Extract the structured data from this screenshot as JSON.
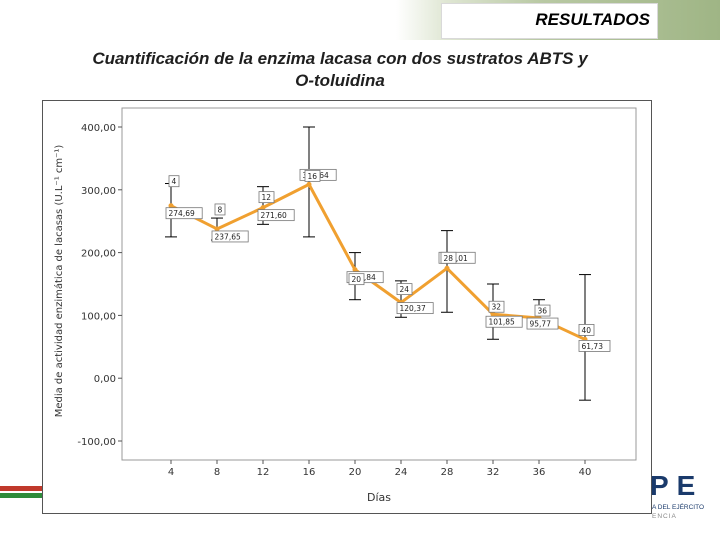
{
  "header": {
    "title": "RESULTADOS"
  },
  "slide": {
    "title_line1": "Cuantificación de la enzima lacasa con dos sustratos ABTS y",
    "title_line2": "O-toluidina"
  },
  "logo": {
    "letters": "PE",
    "line1": "A DEL EJÉRCITO",
    "line2": "ENCIA"
  },
  "colors": {
    "line": "#f0a030",
    "error_bar": "#000000",
    "accent_green": "#2e8b3a",
    "accent_red": "#c0392b"
  },
  "chart_data": {
    "type": "line",
    "title": "",
    "xlabel": "Días",
    "ylabel": "Media de actividad enzimática de lacasas (U.L⁻¹ cm⁻¹)",
    "ylim": [
      -100,
      400
    ],
    "yticks": [
      "-100,00",
      "0,00",
      "100,00",
      "200,00",
      "300,00",
      "400,00"
    ],
    "ytick_values": [
      -100,
      0,
      100,
      200,
      300,
      400
    ],
    "categories": [
      "4",
      "8",
      "12",
      "16",
      "20",
      "24",
      "28",
      "32",
      "36",
      "40"
    ],
    "values": [
      274.69,
      237.65,
      271.6,
      308.64,
      172.84,
      120.37,
      175.01,
      101.85,
      95.77,
      61.73
    ],
    "value_labels": [
      "274,69",
      "237,65",
      "271,60",
      "308,64",
      "172,84",
      "120,37",
      "175,01",
      "101,85",
      "95,77",
      "61,73"
    ],
    "error_upper": [
      310,
      255,
      305,
      400,
      200,
      155,
      235,
      150,
      125,
      165
    ],
    "error_lower": [
      225,
      220,
      245,
      225,
      125,
      97,
      105,
      62,
      85,
      -35
    ],
    "n_labels": [
      "4",
      "8",
      "12",
      "16",
      "20",
      "24",
      "28",
      "32",
      "36",
      "40"
    ],
    "grid": false,
    "legend": "none"
  }
}
